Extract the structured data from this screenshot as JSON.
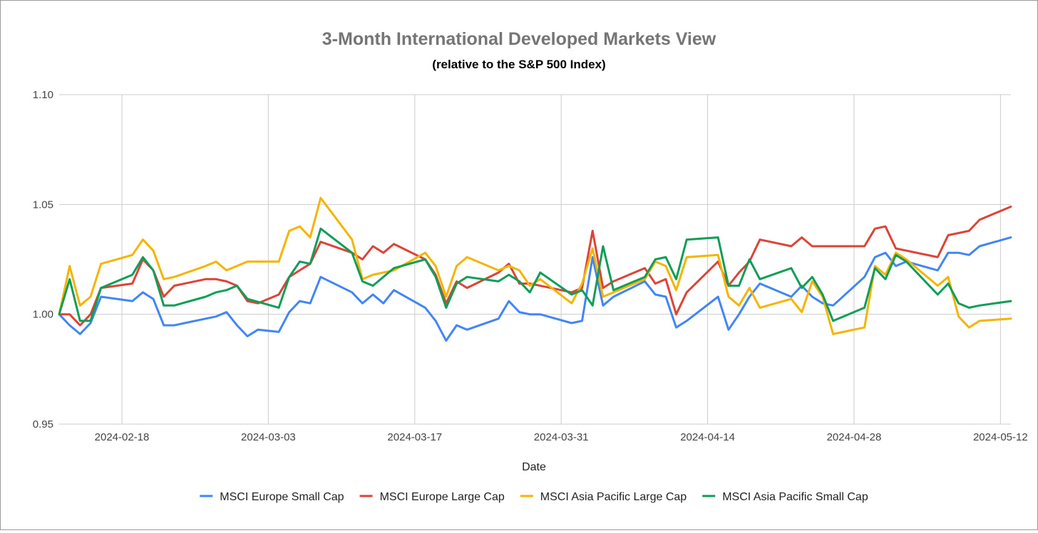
{
  "chart_data": {
    "type": "line",
    "title": "3-Month International Developed Markets View",
    "subtitle": "(relative to the S&P 500 Index)",
    "xlabel": "Date",
    "ylabel": "",
    "ylim": [
      0.95,
      1.1
    ],
    "yticks": [
      "1.10",
      "1.05",
      "1.00",
      "0.95"
    ],
    "ytick_values": [
      1.1,
      1.05,
      1.0,
      0.95
    ],
    "xlim": [
      "2024-02-12",
      "2024-05-13"
    ],
    "xticks": [
      "2024-02-18",
      "2024-03-03",
      "2024-03-17",
      "2024-03-31",
      "2024-04-14",
      "2024-04-28",
      "2024-05-12"
    ],
    "grid": true,
    "legend_position": "bottom",
    "series": [
      {
        "name": "MSCI Europe Small Cap",
        "color": "#4285f4",
        "points": [
          [
            "2024-02-12",
            1.0
          ],
          [
            "2024-02-13",
            0.995
          ],
          [
            "2024-02-14",
            0.991
          ],
          [
            "2024-02-15",
            0.996
          ],
          [
            "2024-02-16",
            1.008
          ],
          [
            "2024-02-19",
            1.006
          ],
          [
            "2024-02-20",
            1.01
          ],
          [
            "2024-02-21",
            1.007
          ],
          [
            "2024-02-22",
            0.995
          ],
          [
            "2024-02-23",
            0.995
          ],
          [
            "2024-02-26",
            0.998
          ],
          [
            "2024-02-27",
            0.999
          ],
          [
            "2024-02-28",
            1.001
          ],
          [
            "2024-02-29",
            0.995
          ],
          [
            "2024-03-01",
            0.99
          ],
          [
            "2024-03-02",
            0.993
          ],
          [
            "2024-03-04",
            0.992
          ],
          [
            "2024-03-05",
            1.001
          ],
          [
            "2024-03-06",
            1.006
          ],
          [
            "2024-03-07",
            1.005
          ],
          [
            "2024-03-08",
            1.017
          ],
          [
            "2024-03-11",
            1.01
          ],
          [
            "2024-03-12",
            1.005
          ],
          [
            "2024-03-13",
            1.009
          ],
          [
            "2024-03-14",
            1.005
          ],
          [
            "2024-03-15",
            1.011
          ],
          [
            "2024-03-18",
            1.003
          ],
          [
            "2024-03-19",
            0.997
          ],
          [
            "2024-03-20",
            0.988
          ],
          [
            "2024-03-21",
            0.995
          ],
          [
            "2024-03-22",
            0.993
          ],
          [
            "2024-03-25",
            0.998
          ],
          [
            "2024-03-26",
            1.006
          ],
          [
            "2024-03-27",
            1.001
          ],
          [
            "2024-03-28",
            1.0
          ],
          [
            "2024-03-29",
            1.0
          ],
          [
            "2024-04-01",
            0.996
          ],
          [
            "2024-04-02",
            0.997
          ],
          [
            "2024-04-03",
            1.026
          ],
          [
            "2024-04-04",
            1.004
          ],
          [
            "2024-04-05",
            1.008
          ],
          [
            "2024-04-08",
            1.015
          ],
          [
            "2024-04-09",
            1.009
          ],
          [
            "2024-04-10",
            1.008
          ],
          [
            "2024-04-11",
            0.994
          ],
          [
            "2024-04-12",
            0.997
          ],
          [
            "2024-04-15",
            1.008
          ],
          [
            "2024-04-16",
            0.993
          ],
          [
            "2024-04-17",
            1.0
          ],
          [
            "2024-04-18",
            1.008
          ],
          [
            "2024-04-19",
            1.014
          ],
          [
            "2024-04-22",
            1.008
          ],
          [
            "2024-04-23",
            1.013
          ],
          [
            "2024-04-24",
            1.008
          ],
          [
            "2024-04-25",
            1.005
          ],
          [
            "2024-04-26",
            1.004
          ],
          [
            "2024-04-29",
            1.017
          ],
          [
            "2024-04-30",
            1.026
          ],
          [
            "2024-05-01",
            1.028
          ],
          [
            "2024-05-02",
            1.022
          ],
          [
            "2024-05-03",
            1.024
          ],
          [
            "2024-05-06",
            1.02
          ],
          [
            "2024-05-07",
            1.028
          ],
          [
            "2024-05-08",
            1.028
          ],
          [
            "2024-05-09",
            1.027
          ],
          [
            "2024-05-10",
            1.031
          ],
          [
            "2024-05-13",
            1.035
          ]
        ]
      },
      {
        "name": "MSCI Europe Large Cap",
        "color": "#db4437",
        "points": [
          [
            "2024-02-12",
            1.0
          ],
          [
            "2024-02-13",
            1.0
          ],
          [
            "2024-02-14",
            0.995
          ],
          [
            "2024-02-15",
            1.0
          ],
          [
            "2024-02-16",
            1.012
          ],
          [
            "2024-02-19",
            1.014
          ],
          [
            "2024-02-20",
            1.025
          ],
          [
            "2024-02-21",
            1.02
          ],
          [
            "2024-02-22",
            1.008
          ],
          [
            "2024-02-23",
            1.013
          ],
          [
            "2024-02-26",
            1.016
          ],
          [
            "2024-02-27",
            1.016
          ],
          [
            "2024-02-28",
            1.015
          ],
          [
            "2024-02-29",
            1.013
          ],
          [
            "2024-03-01",
            1.006
          ],
          [
            "2024-03-02",
            1.005
          ],
          [
            "2024-03-04",
            1.009
          ],
          [
            "2024-03-05",
            1.017
          ],
          [
            "2024-03-06",
            1.02
          ],
          [
            "2024-03-07",
            1.023
          ],
          [
            "2024-03-08",
            1.033
          ],
          [
            "2024-03-11",
            1.028
          ],
          [
            "2024-03-12",
            1.025
          ],
          [
            "2024-03-13",
            1.031
          ],
          [
            "2024-03-14",
            1.028
          ],
          [
            "2024-03-15",
            1.032
          ],
          [
            "2024-03-18",
            1.025
          ],
          [
            "2024-03-19",
            1.018
          ],
          [
            "2024-03-20",
            1.005
          ],
          [
            "2024-03-21",
            1.015
          ],
          [
            "2024-03-22",
            1.012
          ],
          [
            "2024-03-25",
            1.019
          ],
          [
            "2024-03-26",
            1.023
          ],
          [
            "2024-03-27",
            1.014
          ],
          [
            "2024-03-28",
            1.014
          ],
          [
            "2024-03-29",
            1.013
          ],
          [
            "2024-04-01",
            1.01
          ],
          [
            "2024-04-02",
            1.012
          ],
          [
            "2024-04-03",
            1.038
          ],
          [
            "2024-04-04",
            1.012
          ],
          [
            "2024-04-05",
            1.015
          ],
          [
            "2024-04-08",
            1.021
          ],
          [
            "2024-04-09",
            1.014
          ],
          [
            "2024-04-10",
            1.016
          ],
          [
            "2024-04-11",
            1.0
          ],
          [
            "2024-04-12",
            1.01
          ],
          [
            "2024-04-15",
            1.024
          ],
          [
            "2024-04-16",
            1.013
          ],
          [
            "2024-04-17",
            1.019
          ],
          [
            "2024-04-18",
            1.024
          ],
          [
            "2024-04-19",
            1.034
          ],
          [
            "2024-04-22",
            1.031
          ],
          [
            "2024-04-23",
            1.035
          ],
          [
            "2024-04-24",
            1.031
          ],
          [
            "2024-04-25",
            1.031
          ],
          [
            "2024-04-26",
            1.031
          ],
          [
            "2024-04-29",
            1.031
          ],
          [
            "2024-04-30",
            1.039
          ],
          [
            "2024-05-01",
            1.04
          ],
          [
            "2024-05-02",
            1.03
          ],
          [
            "2024-05-03",
            1.029
          ],
          [
            "2024-05-06",
            1.026
          ],
          [
            "2024-05-07",
            1.036
          ],
          [
            "2024-05-08",
            1.037
          ],
          [
            "2024-05-09",
            1.038
          ],
          [
            "2024-05-10",
            1.043
          ],
          [
            "2024-05-13",
            1.049
          ]
        ]
      },
      {
        "name": "MSCI Asia Pacific Large Cap",
        "color": "#f4b400",
        "points": [
          [
            "2024-02-12",
            1.0
          ],
          [
            "2024-02-13",
            1.022
          ],
          [
            "2024-02-14",
            1.004
          ],
          [
            "2024-02-15",
            1.008
          ],
          [
            "2024-02-16",
            1.023
          ],
          [
            "2024-02-19",
            1.027
          ],
          [
            "2024-02-20",
            1.034
          ],
          [
            "2024-02-21",
            1.029
          ],
          [
            "2024-02-22",
            1.016
          ],
          [
            "2024-02-23",
            1.017
          ],
          [
            "2024-02-26",
            1.022
          ],
          [
            "2024-02-27",
            1.024
          ],
          [
            "2024-02-28",
            1.02
          ],
          [
            "2024-02-29",
            1.022
          ],
          [
            "2024-03-01",
            1.024
          ],
          [
            "2024-03-04",
            1.024
          ],
          [
            "2024-03-05",
            1.038
          ],
          [
            "2024-03-06",
            1.04
          ],
          [
            "2024-03-07",
            1.035
          ],
          [
            "2024-03-08",
            1.053
          ],
          [
            "2024-03-11",
            1.034
          ],
          [
            "2024-03-12",
            1.016
          ],
          [
            "2024-03-13",
            1.018
          ],
          [
            "2024-03-15",
            1.02
          ],
          [
            "2024-03-18",
            1.028
          ],
          [
            "2024-03-19",
            1.022
          ],
          [
            "2024-03-20",
            1.008
          ],
          [
            "2024-03-21",
            1.022
          ],
          [
            "2024-03-22",
            1.026
          ],
          [
            "2024-03-25",
            1.02
          ],
          [
            "2024-03-26",
            1.022
          ],
          [
            "2024-03-27",
            1.02
          ],
          [
            "2024-03-28",
            1.013
          ],
          [
            "2024-03-29",
            1.016
          ],
          [
            "2024-04-01",
            1.005
          ],
          [
            "2024-04-02",
            1.014
          ],
          [
            "2024-04-03",
            1.03
          ],
          [
            "2024-04-04",
            1.008
          ],
          [
            "2024-04-05",
            1.01
          ],
          [
            "2024-04-08",
            1.016
          ],
          [
            "2024-04-09",
            1.024
          ],
          [
            "2024-04-10",
            1.022
          ],
          [
            "2024-04-11",
            1.011
          ],
          [
            "2024-04-12",
            1.026
          ],
          [
            "2024-04-15",
            1.027
          ],
          [
            "2024-04-16",
            1.008
          ],
          [
            "2024-04-17",
            1.004
          ],
          [
            "2024-04-18",
            1.012
          ],
          [
            "2024-04-19",
            1.003
          ],
          [
            "2024-04-22",
            1.007
          ],
          [
            "2024-04-23",
            1.001
          ],
          [
            "2024-04-24",
            1.015
          ],
          [
            "2024-04-25",
            1.008
          ],
          [
            "2024-04-26",
            0.991
          ],
          [
            "2024-04-29",
            0.994
          ],
          [
            "2024-04-30",
            1.022
          ],
          [
            "2024-05-01",
            1.018
          ],
          [
            "2024-05-02",
            1.028
          ],
          [
            "2024-05-03",
            1.025
          ],
          [
            "2024-05-06",
            1.013
          ],
          [
            "2024-05-07",
            1.017
          ],
          [
            "2024-05-08",
            0.999
          ],
          [
            "2024-05-09",
            0.994
          ],
          [
            "2024-05-10",
            0.997
          ],
          [
            "2024-05-13",
            0.998
          ]
        ]
      },
      {
        "name": "MSCI Asia Pacific Small Cap",
        "color": "#0f9d58",
        "points": [
          [
            "2024-02-12",
            1.0
          ],
          [
            "2024-02-13",
            1.016
          ],
          [
            "2024-02-14",
            0.997
          ],
          [
            "2024-02-15",
            0.997
          ],
          [
            "2024-02-16",
            1.012
          ],
          [
            "2024-02-19",
            1.018
          ],
          [
            "2024-02-20",
            1.026
          ],
          [
            "2024-02-21",
            1.02
          ],
          [
            "2024-02-22",
            1.004
          ],
          [
            "2024-02-23",
            1.004
          ],
          [
            "2024-02-26",
            1.008
          ],
          [
            "2024-02-27",
            1.01
          ],
          [
            "2024-02-28",
            1.011
          ],
          [
            "2024-02-29",
            1.013
          ],
          [
            "2024-03-01",
            1.007
          ],
          [
            "2024-03-04",
            1.003
          ],
          [
            "2024-03-05",
            1.017
          ],
          [
            "2024-03-06",
            1.024
          ],
          [
            "2024-03-07",
            1.023
          ],
          [
            "2024-03-08",
            1.039
          ],
          [
            "2024-03-11",
            1.028
          ],
          [
            "2024-03-12",
            1.015
          ],
          [
            "2024-03-13",
            1.013
          ],
          [
            "2024-03-15",
            1.021
          ],
          [
            "2024-03-18",
            1.025
          ],
          [
            "2024-03-19",
            1.017
          ],
          [
            "2024-03-20",
            1.003
          ],
          [
            "2024-03-21",
            1.014
          ],
          [
            "2024-03-22",
            1.017
          ],
          [
            "2024-03-25",
            1.015
          ],
          [
            "2024-03-26",
            1.018
          ],
          [
            "2024-03-27",
            1.015
          ],
          [
            "2024-03-28",
            1.01
          ],
          [
            "2024-03-29",
            1.019
          ],
          [
            "2024-04-01",
            1.009
          ],
          [
            "2024-04-02",
            1.011
          ],
          [
            "2024-04-03",
            1.004
          ],
          [
            "2024-04-04",
            1.031
          ],
          [
            "2024-04-05",
            1.011
          ],
          [
            "2024-04-08",
            1.017
          ],
          [
            "2024-04-09",
            1.025
          ],
          [
            "2024-04-10",
            1.026
          ],
          [
            "2024-04-11",
            1.016
          ],
          [
            "2024-04-12",
            1.034
          ],
          [
            "2024-04-15",
            1.035
          ],
          [
            "2024-04-16",
            1.013
          ],
          [
            "2024-04-17",
            1.013
          ],
          [
            "2024-04-18",
            1.025
          ],
          [
            "2024-04-19",
            1.016
          ],
          [
            "2024-04-22",
            1.021
          ],
          [
            "2024-04-23",
            1.012
          ],
          [
            "2024-04-24",
            1.017
          ],
          [
            "2024-04-25",
            1.009
          ],
          [
            "2024-04-26",
            0.997
          ],
          [
            "2024-04-29",
            1.003
          ],
          [
            "2024-04-30",
            1.021
          ],
          [
            "2024-05-01",
            1.016
          ],
          [
            "2024-05-02",
            1.027
          ],
          [
            "2024-05-03",
            1.024
          ],
          [
            "2024-05-06",
            1.009
          ],
          [
            "2024-05-07",
            1.014
          ],
          [
            "2024-05-08",
            1.005
          ],
          [
            "2024-05-09",
            1.003
          ],
          [
            "2024-05-10",
            1.004
          ],
          [
            "2024-05-13",
            1.006
          ]
        ]
      }
    ]
  }
}
